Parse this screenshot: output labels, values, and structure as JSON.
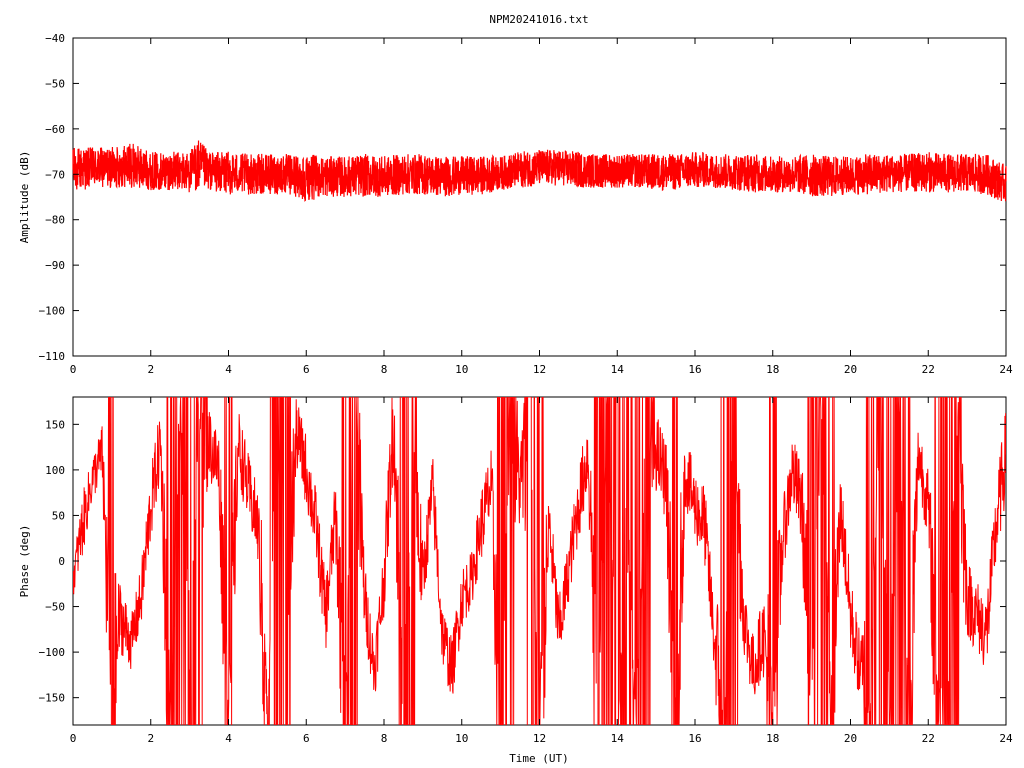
{
  "chart_data": [
    {
      "type": "line",
      "title": "NPM20241016.txt",
      "xlabel": "",
      "ylabel": "Amplitude (dB)",
      "xlim": [
        0,
        24
      ],
      "ylim": [
        -110,
        -40
      ],
      "xticks": [
        "0",
        "2",
        "4",
        "6",
        "8",
        "10",
        "12",
        "14",
        "16",
        "18",
        "20",
        "22",
        "24"
      ],
      "yticks": [
        "-40",
        "-50",
        "-60",
        "-70",
        "-80",
        "-90",
        "-100",
        "-110"
      ],
      "grid": false,
      "series_color": "#ff0000",
      "series": [
        {
          "x": [
            0,
            0.5,
            1,
            1.5,
            2,
            2.5,
            3,
            3.2,
            3.5,
            4,
            4.5,
            5,
            5.5,
            6,
            6.5,
            7,
            7.5,
            8,
            8.5,
            9,
            9.5,
            10,
            10.5,
            11,
            11.5,
            12,
            12.5,
            13,
            13.5,
            14,
            14.5,
            15,
            15.5,
            16,
            16.5,
            17,
            17.5,
            18,
            18.5,
            19,
            19.5,
            20,
            20.5,
            21,
            21.5,
            22,
            22.5,
            23,
            23.5,
            24
          ],
          "mean": [
            -68.5,
            -68,
            -68,
            -68,
            -69,
            -69,
            -69,
            -69,
            -69,
            -69.5,
            -69.5,
            -69.5,
            -69.5,
            -70,
            -70,
            -70,
            -70,
            -70,
            -69.5,
            -69.5,
            -70,
            -70,
            -70,
            -69.5,
            -68.5,
            -68.5,
            -68.5,
            -69,
            -69,
            -69,
            -69,
            -69.5,
            -69.5,
            -69,
            -69,
            -69.5,
            -69.5,
            -70,
            -70,
            -70,
            -70,
            -70,
            -70,
            -69.5,
            -69.5,
            -69.5,
            -69.5,
            -69.5,
            -70,
            -72.5
          ],
          "high": [
            -64,
            -64,
            -64,
            -63,
            -65,
            -65,
            -65,
            -62,
            -65,
            -65,
            -65.5,
            -65.5,
            -65.5,
            -65.5,
            -66,
            -66,
            -65.5,
            -66,
            -65.5,
            -65.5,
            -66,
            -66,
            -66,
            -66,
            -65,
            -64.5,
            -64.5,
            -65,
            -65.5,
            -65.5,
            -65.5,
            -65.5,
            -65.5,
            -65,
            -65.5,
            -65.5,
            -65.5,
            -66,
            -66,
            -65.5,
            -66,
            -66,
            -65.5,
            -65.5,
            -65.5,
            -65,
            -65.5,
            -65.5,
            -65.5,
            -68
          ],
          "low": [
            -74,
            -73,
            -73,
            -73,
            -73.5,
            -73.5,
            -74,
            -74,
            -73.5,
            -74.5,
            -74.5,
            -74.5,
            -74.5,
            -76,
            -75,
            -75,
            -75,
            -75,
            -74.5,
            -74.5,
            -75,
            -74.5,
            -74.5,
            -73.5,
            -73,
            -72.5,
            -72.5,
            -73,
            -73,
            -73,
            -73,
            -73.5,
            -73.5,
            -73,
            -73,
            -73.5,
            -74,
            -74,
            -74,
            -75,
            -75,
            -74.5,
            -74.5,
            -74,
            -74,
            -74,
            -74,
            -74,
            -74.5,
            -76.5
          ]
        }
      ]
    },
    {
      "type": "line",
      "title": "",
      "xlabel": "Time (UT)",
      "ylabel": "Phase (deg)",
      "xlim": [
        0,
        24
      ],
      "ylim": [
        -180,
        180
      ],
      "xticks": [
        "0",
        "2",
        "4",
        "6",
        "8",
        "10",
        "12",
        "14",
        "16",
        "18",
        "20",
        "22",
        "24"
      ],
      "yticks": [
        "150",
        "100",
        "50",
        "0",
        "-50",
        "-100",
        "-150"
      ],
      "grid": false,
      "series_color": "#ff0000",
      "series": [
        {
          "x": [
            0,
            0.25,
            0.5,
            0.75,
            1,
            1.2,
            1.5,
            1.75,
            2,
            2.25,
            2.5,
            2.75,
            3,
            3.25,
            3.5,
            3.75,
            4,
            4.25,
            4.5,
            4.75,
            5,
            5.25,
            5.5,
            5.75,
            6,
            6.25,
            6.5,
            6.75,
            7,
            7.25,
            7.5,
            7.75,
            8,
            8.25,
            8.5,
            8.75,
            9,
            9.25,
            9.5,
            9.75,
            10,
            10.25,
            10.5,
            10.75,
            11,
            11.25,
            11.5,
            11.75,
            12,
            12.25,
            12.5,
            12.75,
            13,
            13.25,
            13.5,
            13.75,
            14,
            14.25,
            14.5,
            14.75,
            15,
            15.25,
            15.5,
            15.75,
            16,
            16.25,
            16.5,
            16.75,
            17,
            17.25,
            17.5,
            17.75,
            18,
            18.25,
            18.5,
            18.75,
            19,
            19.25,
            19.5,
            19.75,
            20,
            20.25,
            20.5,
            20.75,
            21,
            21.25,
            21.5,
            21.75,
            22,
            22.25,
            22.5,
            22.75,
            23,
            23.25,
            23.5,
            23.75,
            24
          ],
          "values": [
            -20,
            40,
            90,
            120,
            -170,
            -60,
            -90,
            -40,
            60,
            130,
            -170,
            160,
            -90,
            170,
            130,
            100,
            -170,
            130,
            80,
            40,
            -170,
            160,
            -60,
            140,
            100,
            40,
            -60,
            50,
            -150,
            170,
            -40,
            -120,
            -20,
            160,
            -170,
            100,
            -20,
            80,
            -80,
            -120,
            -40,
            -20,
            40,
            80,
            -170,
            170,
            80,
            150,
            -170,
            40,
            -80,
            -10,
            60,
            120,
            -150,
            170,
            -170,
            40,
            -170,
            160,
            120,
            90,
            -170,
            100,
            60,
            40,
            -90,
            -170,
            160,
            -60,
            -120,
            -80,
            -170,
            20,
            100,
            60,
            -150,
            170,
            -170,
            60,
            -60,
            -120,
            -170,
            170,
            -170,
            160,
            -170,
            120,
            60,
            -150,
            -170,
            170,
            -40,
            -60,
            -80,
            40,
            120
          ],
          "envelope": [
            20,
            35,
            25,
            30,
            170,
            40,
            30,
            35,
            40,
            40,
            170,
            170,
            170,
            170,
            40,
            45,
            170,
            40,
            40,
            40,
            170,
            170,
            170,
            40,
            40,
            40,
            40,
            40,
            170,
            170,
            40,
            35,
            40,
            60,
            170,
            170,
            35,
            40,
            35,
            35,
            35,
            30,
            40,
            45,
            170,
            170,
            45,
            170,
            170,
            40,
            40,
            35,
            40,
            45,
            170,
            170,
            170,
            170,
            170,
            170,
            45,
            45,
            170,
            40,
            40,
            45,
            40,
            170,
            170,
            40,
            40,
            40,
            170,
            40,
            40,
            45,
            170,
            170,
            170,
            40,
            45,
            40,
            170,
            170,
            170,
            170,
            170,
            40,
            40,
            170,
            170,
            170,
            45,
            40,
            45,
            45,
            50
          ]
        }
      ]
    }
  ]
}
